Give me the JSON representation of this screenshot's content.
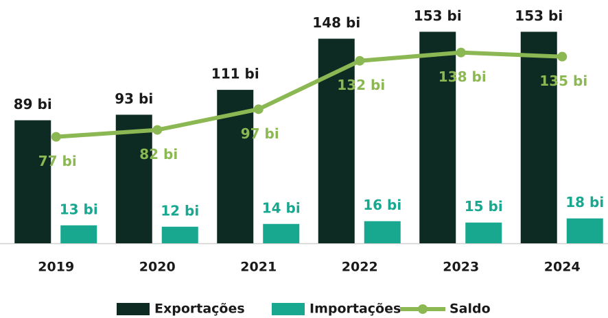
{
  "chart_data": {
    "type": "bar",
    "categories": [
      "2019",
      "2020",
      "2021",
      "2022",
      "2023",
      "2024"
    ],
    "series": [
      {
        "name": "Exportações",
        "color": "#0d2b22",
        "values": [
          89,
          93,
          111,
          148,
          153,
          153
        ],
        "value_labels": [
          "89 bi",
          "93 bi",
          "111 bi",
          "148 bi",
          "153 bi",
          "153 bi"
        ]
      },
      {
        "name": "Importações",
        "color": "#17a88f",
        "values": [
          13,
          12,
          14,
          16,
          15,
          18
        ],
        "value_labels": [
          "13 bi",
          "12 bi",
          "14 bi",
          "16 bi",
          "15 bi",
          "18 bi"
        ]
      },
      {
        "name": "Saldo",
        "type": "line",
        "color": "#8cb853",
        "values": [
          77,
          82,
          97,
          132,
          138,
          135
        ],
        "value_labels": [
          "77 bi",
          "82 bi",
          "97 bi",
          "132 bi",
          "138 bi",
          "135 bi"
        ]
      }
    ],
    "ylim": [
      0,
      175
    ]
  }
}
